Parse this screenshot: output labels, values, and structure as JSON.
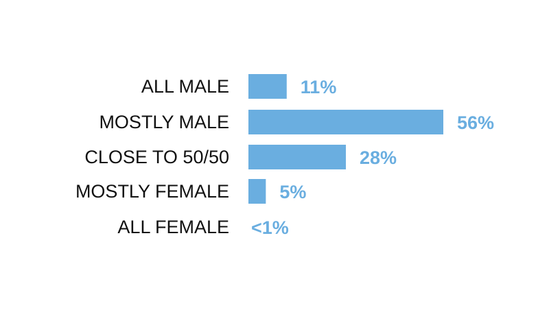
{
  "colors": {
    "bar": "#6aaee0",
    "value_text": "#6aaee0",
    "label_text": "#111111"
  },
  "chart_data": {
    "type": "bar",
    "orientation": "horizontal",
    "categories": [
      "ALL MALE",
      "MOSTLY MALE",
      "CLOSE TO 50/50",
      "MOSTLY FEMALE",
      "ALL FEMALE"
    ],
    "values": [
      11,
      56,
      28,
      5,
      0.5
    ],
    "value_labels": [
      "11%",
      "56%",
      "28%",
      "5%",
      "<1%"
    ],
    "title": "",
    "xlabel": "",
    "ylabel": "",
    "xlim": [
      0,
      56
    ],
    "grid": false,
    "legend": "none"
  }
}
